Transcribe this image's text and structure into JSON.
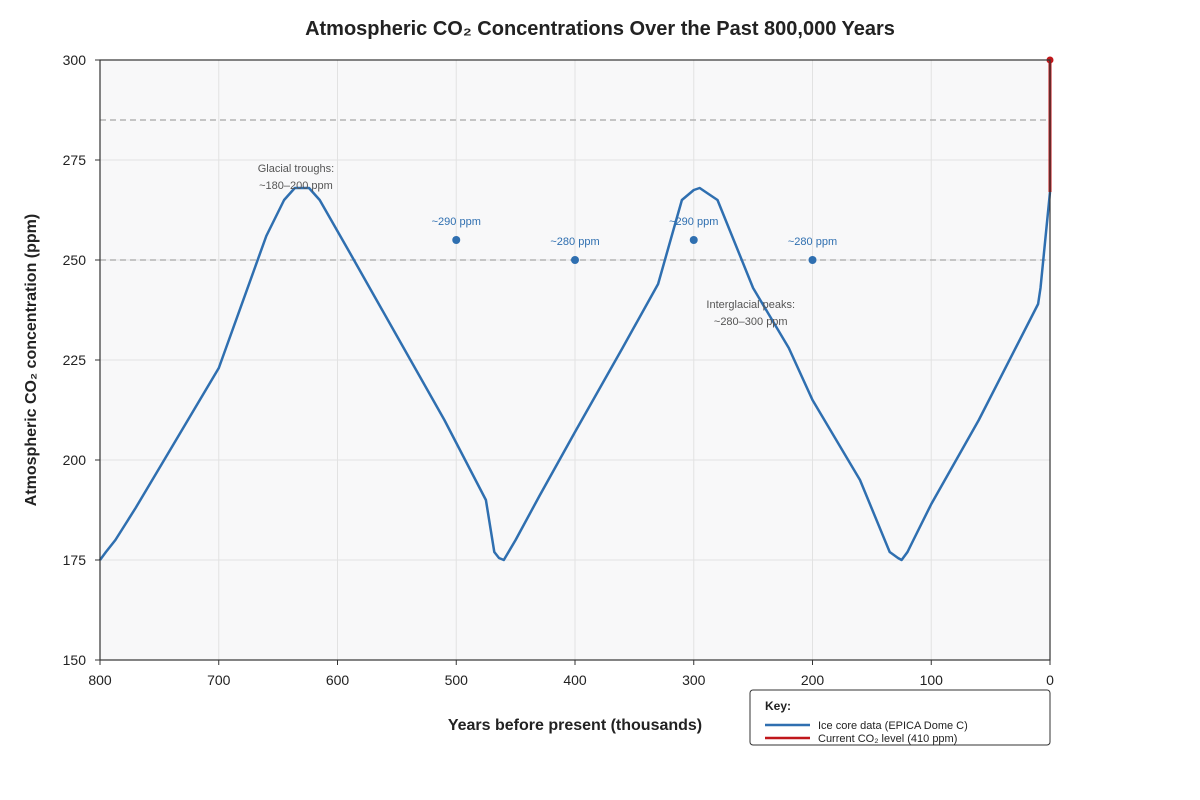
{
  "chart_data": {
    "type": "line",
    "title": "Atmospheric CO₂ Concentrations Over the Past 800,000 Years",
    "xlabel": "Years before present (thousands)",
    "ylabel": "Atmospheric CO₂ concentration (ppm)",
    "xlim": [
      800,
      0
    ],
    "ylim": [
      150,
      300
    ],
    "x_ticks": [
      "800",
      "700",
      "600",
      "500",
      "400",
      "300",
      "200",
      "100",
      "0"
    ],
    "y_ticks": [
      "150",
      "175",
      "200",
      "225",
      "250",
      "275",
      "300"
    ],
    "grid": true,
    "series": [
      {
        "name": "Ice core data (EPICA Dome C)",
        "color": "#2f6fb0",
        "x": [
          800,
          795,
          787,
          770,
          740,
          700,
          660,
          645,
          636,
          630,
          624,
          615,
          590,
          550,
          510,
          475,
          468,
          464,
          460,
          450,
          430,
          400,
          360,
          330,
          310,
          300,
          295,
          290,
          280,
          250,
          220,
          200,
          160,
          135,
          128,
          125,
          120,
          115,
          100,
          60,
          10,
          8,
          0
        ],
        "y": [
          175,
          177,
          180,
          188,
          203,
          223,
          256,
          265,
          268,
          268,
          268,
          265,
          252,
          231,
          210,
          190,
          177,
          175.5,
          175,
          180,
          191,
          207,
          228,
          244,
          265,
          267.5,
          268,
          267,
          265,
          243,
          228,
          215,
          195,
          177,
          175.5,
          175,
          177,
          180,
          189,
          210,
          239,
          243,
          267
        ]
      },
      {
        "name": "Current CO₂ level (410 ppm)",
        "color": "#c0171b",
        "x": [
          0,
          0
        ],
        "y": [
          267,
          300
        ]
      }
    ],
    "reference_lines": [
      {
        "y": 250,
        "color": "#b4b4b4",
        "style": "dashed"
      },
      {
        "y": 285,
        "color": "#b4b4b4",
        "style": "dashed"
      }
    ],
    "markers": [
      {
        "x": 500,
        "y": 255,
        "label": "~290 ppm"
      },
      {
        "x": 400,
        "y": 250,
        "label": "~280 ppm"
      },
      {
        "x": 300,
        "y": 255,
        "label": "~290 ppm"
      },
      {
        "x": 200,
        "y": 250,
        "label": "~280 ppm"
      }
    ],
    "current_marker": {
      "x": 0,
      "y": 300
    },
    "notes": [
      {
        "lines": [
          "Glacial troughs:",
          "~180–200 ppm"
        ],
        "x": 635,
        "y": 272
      },
      {
        "lines": [
          "Interglacial peaks:",
          "~280–300 ppm"
        ],
        "x": 252,
        "y": 238
      }
    ],
    "legend": {
      "placement": "bottom-right",
      "title": "Key:",
      "entries": [
        "Ice core data (EPICA Dome C)",
        "Current CO₂ level (410 ppm)"
      ]
    },
    "colors": {
      "plot_background": "#f8f8f9",
      "grid": "#e2e2e2",
      "axis": "#333333"
    }
  }
}
